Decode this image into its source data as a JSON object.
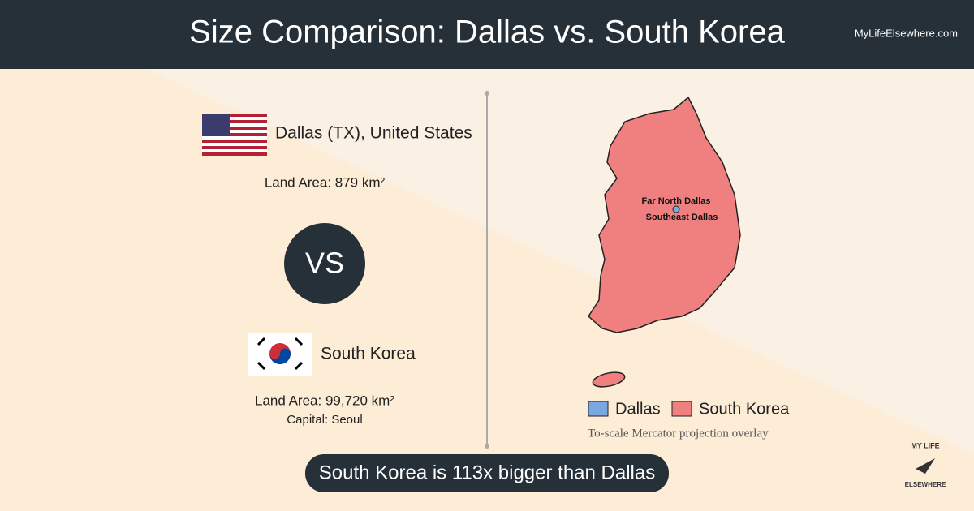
{
  "header": {
    "title": "Size Comparison: Dallas vs. South Korea",
    "site": "MyLifeElsewhere.com"
  },
  "first": {
    "name": "Dallas (TX), United States",
    "land_area": "Land Area: 879 km²"
  },
  "versus": "VS",
  "second": {
    "name": "South Korea",
    "land_area": "Land Area: 99,720 km²",
    "capital": "Capital: Seoul"
  },
  "map": {
    "labels": [
      "Far North Dallas",
      "Southeast Dallas"
    ],
    "legend": [
      "Dallas",
      "South Korea"
    ],
    "note": "To-scale Mercator projection overlay"
  },
  "summary": "South Korea is 113x bigger than Dallas",
  "logo": [
    "MY LIFE",
    "ELSEWHERE"
  ]
}
